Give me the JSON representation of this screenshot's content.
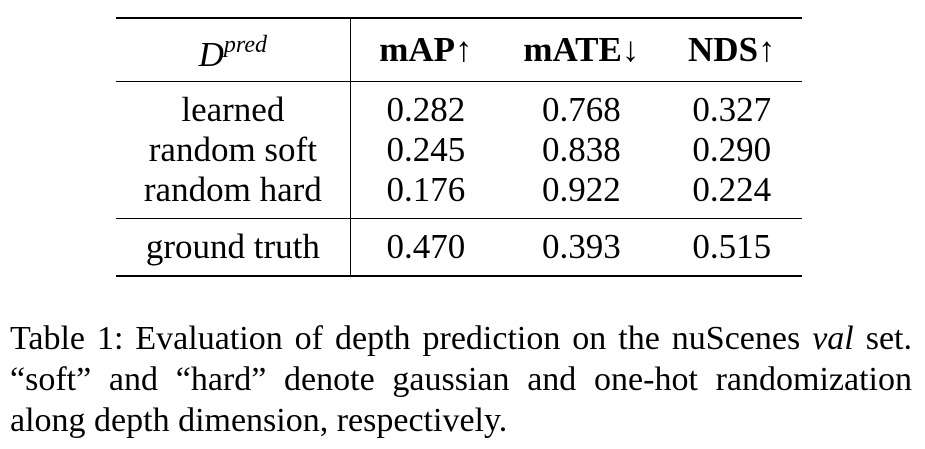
{
  "table": {
    "header": {
      "method_symbol": "D",
      "method_superscript": "pred",
      "columns": [
        "mAP↑",
        "mATE↓",
        "NDS↑"
      ]
    },
    "rows": [
      {
        "method": "learned",
        "values": [
          "0.282",
          "0.768",
          "0.327"
        ]
      },
      {
        "method": "random soft",
        "values": [
          "0.245",
          "0.838",
          "0.290"
        ]
      },
      {
        "method": "random hard",
        "values": [
          "0.176",
          "0.922",
          "0.224"
        ]
      }
    ],
    "gt_row": {
      "method": "ground truth",
      "values": [
        "0.470",
        "0.393",
        "0.515"
      ]
    }
  },
  "caption": {
    "prefix": "Table 1: Evaluation of depth prediction on the nuScenes ",
    "italic": "val",
    "suffix": " set. “soft” and “hard” denote gaussian and one-hot randomization along depth dimension, respectively."
  }
}
